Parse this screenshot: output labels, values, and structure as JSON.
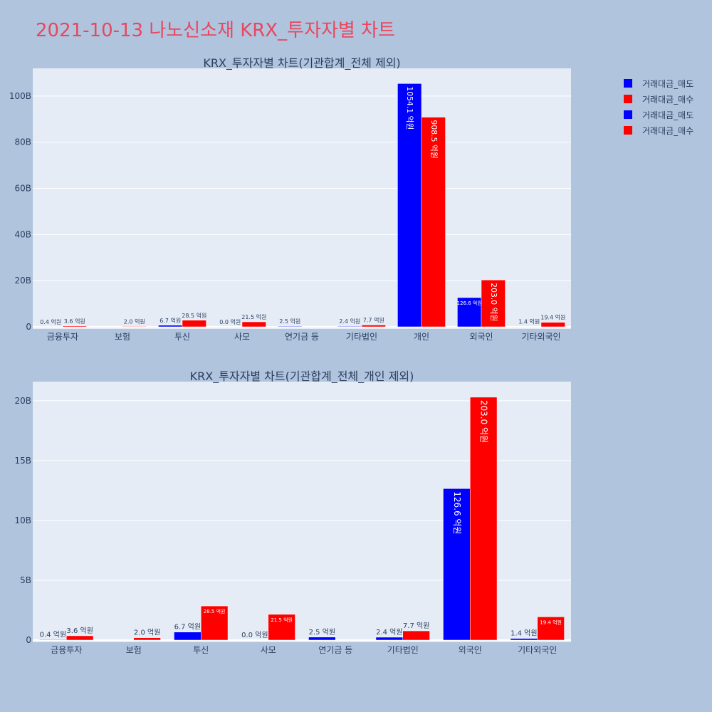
{
  "page": {
    "title": "2021-10-13 나노신소재 KRX_투자자별 차트"
  },
  "legend": [
    {
      "label": "거래대금_매도",
      "color": "#0000ff"
    },
    {
      "label": "거래대금_매수",
      "color": "#ff0000"
    },
    {
      "label": "거래대금_매도",
      "color": "#0000ff"
    },
    {
      "label": "거래대금_매수",
      "color": "#ff0000"
    }
  ],
  "chart_data": [
    {
      "type": "bar",
      "title": "KRX_투자자별 차트(기관합계_전체 제외)",
      "categories": [
        "금융투자",
        "보험",
        "투신",
        "사모",
        "연기금 등",
        "기타법인",
        "개인",
        "외국인",
        "기타외국인"
      ],
      "ylim": [
        0,
        112
      ],
      "yticks": [
        0,
        20,
        40,
        60,
        80,
        100
      ],
      "ytick_labels": [
        "0",
        "20B",
        "40B",
        "60B",
        "80B",
        "100B"
      ],
      "grid": true,
      "series": [
        {
          "name": "거래대금_매도",
          "color": "#0000ff",
          "values": [
            0.04,
            0,
            0.67,
            0.0,
            0.25,
            0.24,
            105.41,
            12.66,
            0.14
          ],
          "labels": [
            "0.4 억원",
            "",
            "6.7 억원",
            "0.0 억원",
            "2.5 억원",
            "2.4 억원",
            "1054.1 억원",
            "126.6 억원",
            "1.4 억원"
          ]
        },
        {
          "name": "거래대금_매수",
          "color": "#ff0000",
          "values": [
            0.36,
            0.2,
            2.85,
            2.15,
            0,
            0.77,
            90.85,
            20.3,
            1.94
          ],
          "labels": [
            "3.6 억원",
            "2.0 억원",
            "28.5 억원",
            "21.5 억원",
            "",
            "7.7 억원",
            "908.5 억원",
            "203.0 억원",
            "19.4 억원"
          ]
        }
      ]
    },
    {
      "type": "bar",
      "title": "KRX_투자자별 차트(기관합계_전체_개인 제외)",
      "categories": [
        "금융투자",
        "보험",
        "투신",
        "사모",
        "연기금 등",
        "기타법인",
        "외국인",
        "기타외국인"
      ],
      "ylim": [
        0,
        21.6
      ],
      "yticks": [
        0,
        5,
        10,
        15,
        20
      ],
      "ytick_labels": [
        "0",
        "5B",
        "10B",
        "15B",
        "20B"
      ],
      "grid": true,
      "series": [
        {
          "name": "거래대금_매도",
          "color": "#0000ff",
          "values": [
            0.04,
            0,
            0.67,
            0.0,
            0.25,
            0.24,
            12.66,
            0.14
          ],
          "labels": [
            "0.4 억원",
            "",
            "6.7 억원",
            "0.0 억원",
            "2.5 억원",
            "2.4 억원",
            "126.6 억원",
            "1.4 억원"
          ]
        },
        {
          "name": "거래대금_매수",
          "color": "#ff0000",
          "values": [
            0.36,
            0.2,
            2.85,
            2.15,
            0,
            0.77,
            20.3,
            1.94
          ],
          "labels": [
            "3.6 억원",
            "2.0 억원",
            "28.5 억원",
            "21.5 억원",
            "",
            "7.7 억원",
            "203.0 억원",
            "19.4 억원"
          ]
        }
      ]
    }
  ]
}
